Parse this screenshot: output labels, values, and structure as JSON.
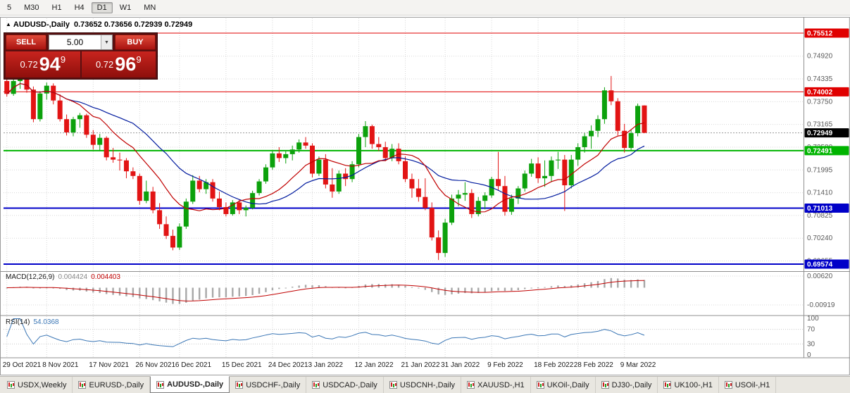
{
  "toolbar": {
    "timeframes": [
      {
        "label": "5",
        "active": false
      },
      {
        "label": "M30",
        "active": false
      },
      {
        "label": "H1",
        "active": false
      },
      {
        "label": "H4",
        "active": false
      },
      {
        "label": "D1",
        "active": true
      },
      {
        "label": "W1",
        "active": false
      },
      {
        "label": "MN",
        "active": false
      }
    ]
  },
  "chart": {
    "collapse_icon": "▲",
    "title": "AUDUSD-,Daily",
    "ohlc_text": "0.73652 0.73656 0.72939 0.72949"
  },
  "trade_panel": {
    "sell_label": "SELL",
    "buy_label": "BUY",
    "volume": "5.00",
    "dropdown_icon": "▼",
    "sell_price": {
      "small": "0.72",
      "big": "94",
      "sup": "9"
    },
    "buy_price": {
      "small": "0.72",
      "big": "96",
      "sup": "9"
    }
  },
  "chart_data": {
    "type": "candlestick",
    "symbol": "AUDUSD-,Daily",
    "colors": {
      "bull": "#0ca10c",
      "bear": "#e21414",
      "ma_fast": "#c00000",
      "ma_slow": "#001a9e",
      "macd_hist": "#a8a8a8",
      "macd_signal": "#c00000",
      "rsi_line": "#3a76b5",
      "grid": "#d8d8d8",
      "axis_text": "#5a5a5a",
      "date_text": "#1a1a1a",
      "current_badge": "#000000"
    },
    "candles": [
      [
        0.7428,
        0.7438,
        0.7388,
        0.7395
      ],
      [
        0.7395,
        0.7436,
        0.739,
        0.7428
      ],
      [
        0.7428,
        0.7448,
        0.7408,
        0.7442
      ],
      [
        0.7442,
        0.7446,
        0.7398,
        0.7406
      ],
      [
        0.7406,
        0.7414,
        0.7322,
        0.733
      ],
      [
        0.733,
        0.7402,
        0.7324,
        0.7396
      ],
      [
        0.7396,
        0.7424,
        0.738,
        0.7416
      ],
      [
        0.7416,
        0.7422,
        0.7368,
        0.7378
      ],
      [
        0.7378,
        0.7394,
        0.7324,
        0.733
      ],
      [
        0.733,
        0.7342,
        0.7288,
        0.7296
      ],
      [
        0.7296,
        0.7336,
        0.7286,
        0.733
      ],
      [
        0.733,
        0.7346,
        0.7308,
        0.734
      ],
      [
        0.734,
        0.7344,
        0.7282,
        0.729
      ],
      [
        0.729,
        0.7302,
        0.7252,
        0.7264
      ],
      [
        0.7264,
        0.7292,
        0.7248,
        0.7282
      ],
      [
        0.7282,
        0.7286,
        0.7224,
        0.7232
      ],
      [
        0.7232,
        0.7256,
        0.7218,
        0.7226
      ],
      [
        0.7226,
        0.7244,
        0.7198,
        0.7224
      ],
      [
        0.7224,
        0.723,
        0.7178,
        0.7196
      ],
      [
        0.7196,
        0.7206,
        0.7176,
        0.7184
      ],
      [
        0.7184,
        0.719,
        0.711,
        0.712
      ],
      [
        0.712,
        0.7172,
        0.7114,
        0.7144
      ],
      [
        0.7144,
        0.7156,
        0.7088,
        0.7096
      ],
      [
        0.7096,
        0.7114,
        0.7048,
        0.706
      ],
      [
        0.706,
        0.708,
        0.7022,
        0.703
      ],
      [
        0.703,
        0.7046,
        0.6993,
        0.7
      ],
      [
        0.7,
        0.7062,
        0.6994,
        0.7054
      ],
      [
        0.7054,
        0.7126,
        0.7048,
        0.7118
      ],
      [
        0.7118,
        0.7186,
        0.7112,
        0.7172
      ],
      [
        0.7172,
        0.7184,
        0.7142,
        0.715
      ],
      [
        0.715,
        0.7176,
        0.7138,
        0.7168
      ],
      [
        0.7168,
        0.7176,
        0.7118,
        0.7126
      ],
      [
        0.7126,
        0.7144,
        0.7096,
        0.7104
      ],
      [
        0.7104,
        0.7116,
        0.708,
        0.7086
      ],
      [
        0.7086,
        0.7122,
        0.7082,
        0.7116
      ],
      [
        0.7116,
        0.7124,
        0.7086,
        0.7096
      ],
      [
        0.7096,
        0.7108,
        0.708,
        0.7102
      ],
      [
        0.7102,
        0.7146,
        0.7098,
        0.714
      ],
      [
        0.714,
        0.7176,
        0.7134,
        0.717
      ],
      [
        0.717,
        0.7214,
        0.7164,
        0.7206
      ],
      [
        0.7206,
        0.7248,
        0.72,
        0.7242
      ],
      [
        0.7242,
        0.7258,
        0.722,
        0.723
      ],
      [
        0.723,
        0.7248,
        0.7216,
        0.724
      ],
      [
        0.724,
        0.7262,
        0.7224,
        0.7252
      ],
      [
        0.7252,
        0.7278,
        0.7244,
        0.727
      ],
      [
        0.727,
        0.7284,
        0.7254,
        0.7262
      ],
      [
        0.7262,
        0.7268,
        0.718,
        0.719
      ],
      [
        0.719,
        0.7234,
        0.7184,
        0.7226
      ],
      [
        0.7226,
        0.724,
        0.7152,
        0.7162
      ],
      [
        0.7162,
        0.7204,
        0.7128,
        0.7144
      ],
      [
        0.7144,
        0.7198,
        0.7138,
        0.719
      ],
      [
        0.719,
        0.7204,
        0.7158,
        0.7176
      ],
      [
        0.7176,
        0.7222,
        0.7168,
        0.7214
      ],
      [
        0.7214,
        0.7292,
        0.7206,
        0.7284
      ],
      [
        0.7284,
        0.7325,
        0.7258,
        0.7312
      ],
      [
        0.7312,
        0.7316,
        0.7254,
        0.7266
      ],
      [
        0.7266,
        0.7284,
        0.7248,
        0.7258
      ],
      [
        0.7258,
        0.7272,
        0.7222,
        0.723
      ],
      [
        0.723,
        0.7266,
        0.7222,
        0.7254
      ],
      [
        0.7254,
        0.7268,
        0.7214,
        0.7222
      ],
      [
        0.7222,
        0.7234,
        0.7168,
        0.7176
      ],
      [
        0.7176,
        0.719,
        0.7128,
        0.7152
      ],
      [
        0.7152,
        0.7176,
        0.7118,
        0.713
      ],
      [
        0.713,
        0.7178,
        0.7096,
        0.7102
      ],
      [
        0.7102,
        0.7116,
        0.7018,
        0.7026
      ],
      [
        0.7026,
        0.7044,
        0.6968,
        0.6986
      ],
      [
        0.6986,
        0.7074,
        0.6976,
        0.7064
      ],
      [
        0.7064,
        0.7136,
        0.7058,
        0.7126
      ],
      [
        0.7126,
        0.7148,
        0.7106,
        0.7136
      ],
      [
        0.7136,
        0.7168,
        0.712,
        0.714
      ],
      [
        0.714,
        0.715,
        0.7076,
        0.7086
      ],
      [
        0.7086,
        0.713,
        0.708,
        0.712
      ],
      [
        0.712,
        0.7142,
        0.7098,
        0.7134
      ],
      [
        0.7134,
        0.7182,
        0.7128,
        0.7176
      ],
      [
        0.7176,
        0.7246,
        0.7146,
        0.7158
      ],
      [
        0.7158,
        0.7184,
        0.7082,
        0.7092
      ],
      [
        0.7092,
        0.7136,
        0.7084,
        0.7126
      ],
      [
        0.7126,
        0.7158,
        0.7112,
        0.7152
      ],
      [
        0.7152,
        0.7198,
        0.7144,
        0.719
      ],
      [
        0.719,
        0.7228,
        0.7182,
        0.7216
      ],
      [
        0.7216,
        0.7232,
        0.7166,
        0.7178
      ],
      [
        0.7178,
        0.7224,
        0.7156,
        0.7184
      ],
      [
        0.7184,
        0.7234,
        0.7168,
        0.7224
      ],
      [
        0.7224,
        0.7246,
        0.7202,
        0.7226
      ],
      [
        0.7226,
        0.7238,
        0.7094,
        0.716
      ],
      [
        0.716,
        0.7238,
        0.7152,
        0.7226
      ],
      [
        0.7226,
        0.7268,
        0.721,
        0.7258
      ],
      [
        0.7258,
        0.7294,
        0.7244,
        0.7286
      ],
      [
        0.7286,
        0.7314,
        0.7254,
        0.73
      ],
      [
        0.73,
        0.734,
        0.7284,
        0.733
      ],
      [
        0.733,
        0.7412,
        0.7318,
        0.7404
      ],
      [
        0.7404,
        0.7441,
        0.7366,
        0.7376
      ],
      [
        0.7376,
        0.7384,
        0.7288,
        0.73
      ],
      [
        0.73,
        0.7318,
        0.7244,
        0.7256
      ],
      [
        0.7256,
        0.7302,
        0.7248,
        0.7294
      ],
      [
        0.7294,
        0.737,
        0.7286,
        0.7364
      ],
      [
        0.73652,
        0.73656,
        0.72939,
        0.72949
      ]
    ],
    "x_ticks": [
      {
        "i": 0,
        "label": "29 Oct 2021"
      },
      {
        "i": 6,
        "label": "8 Nov 2021"
      },
      {
        "i": 13,
        "label": "17 Nov 2021"
      },
      {
        "i": 20,
        "label": "26 Nov 2021"
      },
      {
        "i": 26,
        "label": "6 Dec 2021"
      },
      {
        "i": 33,
        "label": "15 Dec 2021"
      },
      {
        "i": 40,
        "label": "24 Dec 2021"
      },
      {
        "i": 46,
        "label": "3 Jan 2022"
      },
      {
        "i": 53,
        "label": "12 Jan 2022"
      },
      {
        "i": 60,
        "label": "21 Jan 2022"
      },
      {
        "i": 66,
        "label": "31 Jan 2022"
      },
      {
        "i": 73,
        "label": "9 Feb 2022"
      },
      {
        "i": 80,
        "label": "18 Feb 2022"
      },
      {
        "i": 86,
        "label": "28 Feb 2022"
      },
      {
        "i": 93,
        "label": "9 Mar 2022"
      }
    ],
    "y_axis": {
      "grid": [
        {
          "price": 0.7492,
          "text": "0.74920"
        },
        {
          "price": 0.74335,
          "text": "0.74335"
        },
        {
          "price": 0.7375,
          "text": "0.73750"
        },
        {
          "price": 0.73165,
          "text": "0.73165"
        },
        {
          "price": 0.7258,
          "text": "0.72580"
        },
        {
          "price": 0.71995,
          "text": "0.71995"
        },
        {
          "price": 0.7141,
          "text": "0.71410"
        },
        {
          "price": 0.70825,
          "text": "0.70825"
        },
        {
          "price": 0.7024,
          "text": "0.70240"
        },
        {
          "price": 0.69655,
          "text": "0.69655"
        }
      ]
    },
    "levels": [
      {
        "price": 0.75512,
        "text": "0.75512",
        "color": "#e00000",
        "width": 1
      },
      {
        "price": 0.74002,
        "text": "0.74002",
        "color": "#e00000",
        "width": 1
      },
      {
        "price": 0.72491,
        "text": "0.72491",
        "color": "#00b400",
        "width": 2
      },
      {
        "price": 0.71013,
        "text": "0.71013",
        "color": "#0000c8",
        "width": 2
      },
      {
        "price": 0.69574,
        "text": "0.69574",
        "color": "#0000c8",
        "width": 2
      }
    ],
    "current": {
      "price": 0.72949,
      "text": "0.72949"
    },
    "macd": {
      "name": "MACD(12,26,9)",
      "main_value": "0.004424",
      "signal_value": "0.004403",
      "fast": 12,
      "slow": 26,
      "signal": 9,
      "axis": [
        {
          "v": 0.0062,
          "text": "0.00620"
        },
        {
          "v": -0.00919,
          "text": "-0.00919"
        }
      ]
    },
    "rsi": {
      "name": "RSI(14)",
      "value": "54.0368",
      "period": 14,
      "axis": [
        {
          "v": 100,
          "text": "100",
          "dotted": false
        },
        {
          "v": 70,
          "text": "70",
          "dotted": true
        },
        {
          "v": 30,
          "text": "30",
          "dotted": true
        },
        {
          "v": 0,
          "text": "0",
          "dotted": false
        }
      ]
    }
  },
  "tabs": [
    {
      "label": "USDX,Weekly",
      "active": false
    },
    {
      "label": "EURUSD-,Daily",
      "active": false
    },
    {
      "label": "AUDUSD-,Daily",
      "active": true
    },
    {
      "label": "USDCHF-,Daily",
      "active": false
    },
    {
      "label": "USDCAD-,Daily",
      "active": false
    },
    {
      "label": "USDCNH-,Daily",
      "active": false
    },
    {
      "label": "XAUUSD-,H1",
      "active": false
    },
    {
      "label": "UKOil-,Daily",
      "active": false
    },
    {
      "label": "DJ30-,Daily",
      "active": false
    },
    {
      "label": "UK100-,H1",
      "active": false
    },
    {
      "label": "USOil-,H1",
      "active": false
    }
  ]
}
